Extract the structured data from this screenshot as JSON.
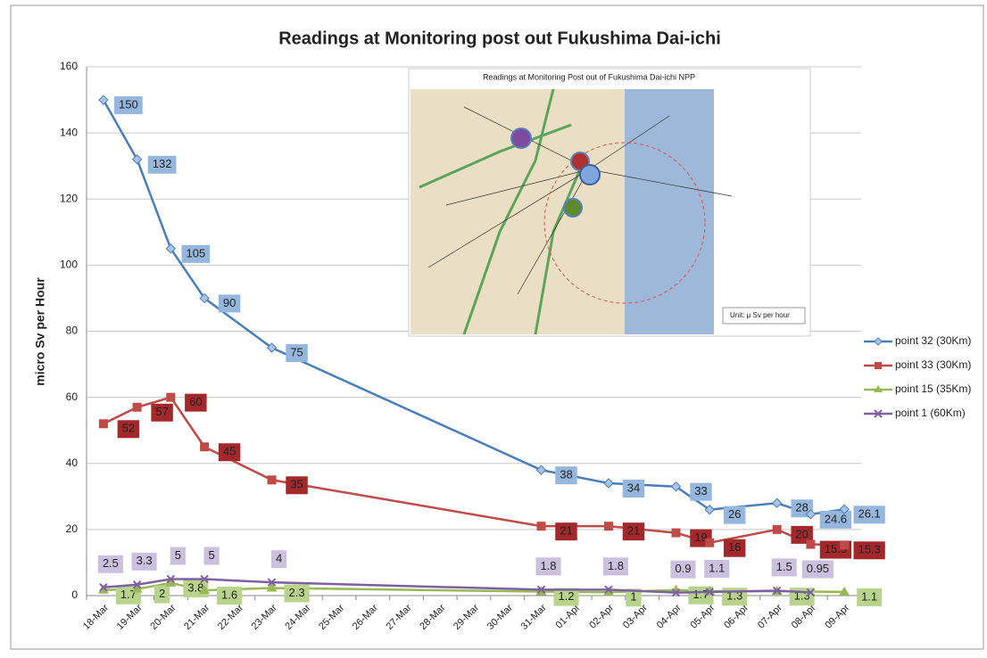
{
  "chart_data": {
    "type": "line",
    "title": "Readings at Monitoring post out Fukushima Dai-ichi",
    "y_label": "micro Sv per Hour",
    "inset_title": "Readings at Monitoring Post out of Fukushima Dai-ichi NPP",
    "inset_unit": "Unit: μ Sv per hour",
    "categories": [
      "18-Mar",
      "19-Mar",
      "20-Mar",
      "21-Mar",
      "22-Mar",
      "23-Mar",
      "24-Mar",
      "25-Mar",
      "26-Mar",
      "27-Mar",
      "28-Mar",
      "29-Mar",
      "30-Mar",
      "31-Mar",
      "01-Apr",
      "02-Apr",
      "03-Apr",
      "04-Apr",
      "05-Apr",
      "06-Apr",
      "07-Apr",
      "08-Apr",
      "09-Apr"
    ],
    "ylim": [
      0,
      160
    ],
    "yticks": [
      0,
      20,
      40,
      60,
      80,
      100,
      120,
      140,
      160
    ],
    "grid": true,
    "legend": "right",
    "series": [
      {
        "name": "point 32 (30Km)",
        "color": "#4a7ebb",
        "marker": "diamond",
        "label_color": "#95b7dd",
        "x": [
          "18-Mar",
          "19-Mar",
          "20-Mar",
          "21-Mar",
          "23-Mar",
          "31-Mar",
          "02-Apr",
          "04-Apr",
          "05-Apr",
          "07-Apr",
          "08-Apr",
          "09-Apr"
        ],
        "values": [
          150,
          132,
          105,
          90,
          75,
          38,
          34,
          33,
          26,
          28,
          24.6,
          26.1
        ]
      },
      {
        "name": "point 33 (30Km)",
        "color": "#be4b48",
        "marker": "square",
        "label_color": "#a3282b",
        "x": [
          "18-Mar",
          "19-Mar",
          "20-Mar",
          "21-Mar",
          "23-Mar",
          "31-Mar",
          "02-Apr",
          "04-Apr",
          "05-Apr",
          "07-Apr",
          "08-Apr",
          "09-Apr"
        ],
        "values": [
          52,
          57,
          60,
          45,
          35,
          21,
          21,
          19,
          16,
          20,
          15.5,
          15.3
        ]
      },
      {
        "name": "point 15 (35Km)",
        "color": "#98b954",
        "marker": "triangle",
        "label_color": "#b7d38c",
        "x": [
          "18-Mar",
          "19-Mar",
          "20-Mar",
          "21-Mar",
          "23-Mar",
          "31-Mar",
          "02-Apr",
          "04-Apr",
          "05-Apr",
          "07-Apr",
          "09-Apr"
        ],
        "values": [
          1.7,
          2,
          3.8,
          1.6,
          2.3,
          1.2,
          1,
          1.7,
          1.3,
          1.3,
          1.1
        ]
      },
      {
        "name": "point 1 (60Km)",
        "color": "#7d60a0",
        "marker": "x",
        "label_color": "#cbc0de",
        "x": [
          "18-Mar",
          "19-Mar",
          "20-Mar",
          "21-Mar",
          "23-Mar",
          "31-Mar",
          "02-Apr",
          "04-Apr",
          "05-Apr",
          "07-Apr",
          "08-Apr"
        ],
        "values": [
          2.5,
          3.3,
          5,
          5,
          4,
          1.8,
          1.8,
          0.9,
          1.1,
          1.5,
          0.95
        ]
      }
    ]
  }
}
